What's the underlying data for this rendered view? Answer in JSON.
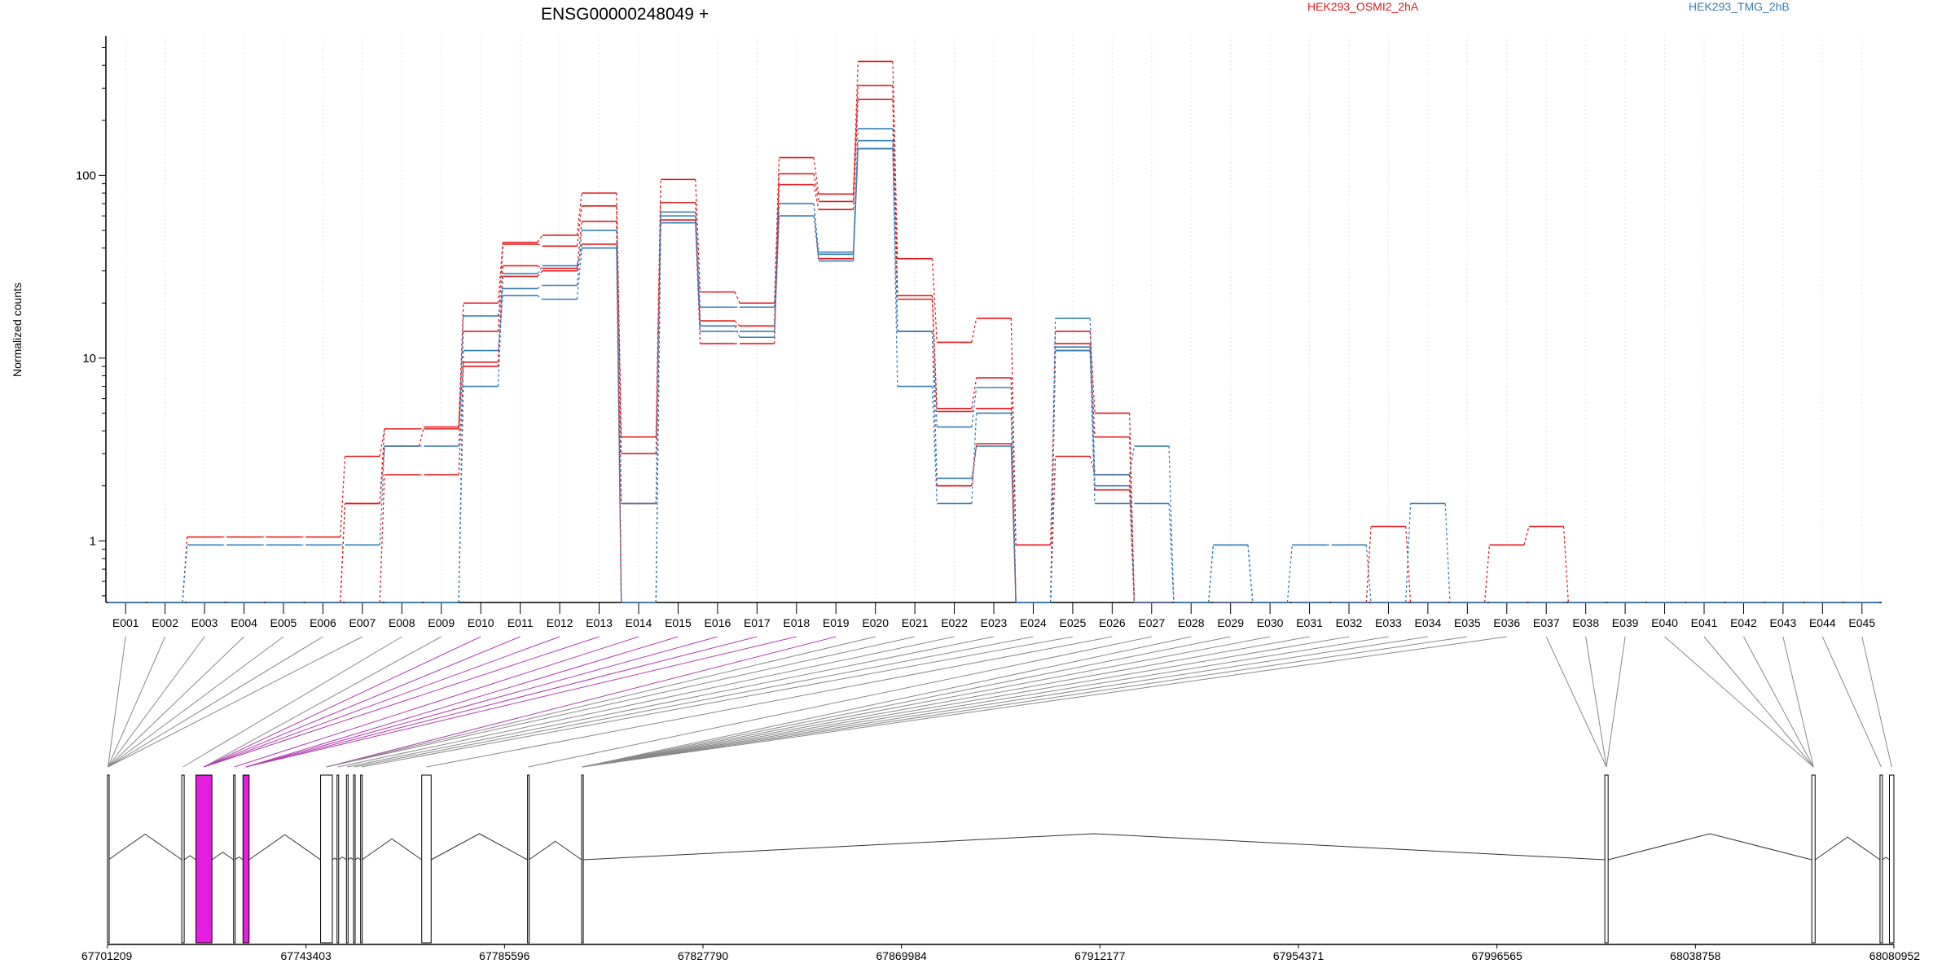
{
  "chart_data": {
    "type": "line",
    "title": "ENSG00000248049 +",
    "ylabel": "Normalized counts",
    "yscale": "log",
    "ylim": [
      0.46,
      580
    ],
    "yticks": [
      {
        "label": "1",
        "value": 1
      },
      {
        "label": "10",
        "value": 10
      },
      {
        "label": "100",
        "value": 100
      }
    ],
    "floor_value": 0.46,
    "categories": [
      "E001",
      "E002",
      "E003",
      "E004",
      "E005",
      "E006",
      "E007",
      "E008",
      "E009",
      "E010",
      "E011",
      "E012",
      "E013",
      "E014",
      "E015",
      "E016",
      "E017",
      "E018",
      "E019",
      "E020",
      "E021",
      "E022",
      "E023",
      "E024",
      "E025",
      "E026",
      "E027",
      "E028",
      "E029",
      "E030",
      "E031",
      "E032",
      "E033",
      "E034",
      "E035",
      "E036",
      "E037",
      "E038",
      "E039",
      "E040",
      "E041",
      "E042",
      "E043",
      "E044",
      "E045"
    ],
    "groups": [
      {
        "name": "HEK293_OSMI2_2hA",
        "color": "#e41a1c"
      },
      {
        "name": "HEK293_TMG_2hB",
        "color": "#377eb8"
      }
    ],
    "series": [
      {
        "group": 0,
        "values": [
          0.46,
          0.46,
          1.05,
          1.05,
          1.05,
          1.05,
          2.9,
          4.1,
          4.1,
          20,
          43,
          47,
          80,
          3.7,
          95,
          23,
          20,
          125,
          79,
          420,
          35,
          12.2,
          16.5,
          0.95,
          14,
          5,
          0.46,
          0.46,
          0.46,
          0.46,
          0.46,
          0.46,
          1.2,
          0.46,
          0.46,
          0.95,
          1.2,
          0.46,
          0.46,
          0.46,
          0.46,
          0.46,
          0.46,
          0.46,
          0.46
        ]
      },
      {
        "group": 0,
        "values": [
          0.46,
          0.46,
          0.46,
          0.46,
          0.46,
          0.46,
          1.6,
          3.3,
          4.2,
          14,
          42,
          41,
          68,
          3.0,
          71,
          16,
          15,
          102,
          72,
          310,
          22,
          5.3,
          7.8,
          0.46,
          12,
          3.7,
          0.46,
          0.46,
          0.46,
          0.46,
          0.46,
          0.46,
          0.46,
          0.46,
          0.46,
          0.46,
          0.46,
          0.46,
          0.46,
          0.46,
          0.46,
          0.46,
          0.46,
          0.46,
          0.46
        ]
      },
      {
        "group": 0,
        "values": [
          0.46,
          0.46,
          0.46,
          0.46,
          0.46,
          0.46,
          0.46,
          2.3,
          2.3,
          9,
          32,
          31,
          56,
          0.46,
          57,
          12,
          12,
          89,
          65,
          260,
          21,
          5.1,
          5.3,
          0.46,
          2.9,
          2.3,
          0.46,
          0.46,
          0.46,
          0.46,
          0.46,
          0.46,
          0.46,
          0.46,
          0.46,
          0.46,
          0.46,
          0.46,
          0.46,
          0.46,
          0.46,
          0.46,
          0.46,
          0.46,
          0.46
        ]
      },
      {
        "group": 0,
        "values": [
          0.46,
          0.46,
          0.46,
          0.46,
          0.46,
          0.46,
          1.6,
          4.1,
          4.1,
          9.5,
          28,
          30,
          42,
          1.6,
          57,
          15,
          15,
          60,
          35,
          140,
          14,
          2.0,
          3.4,
          0.46,
          11,
          1.9,
          0.46,
          0.46,
          0.46,
          0.46,
          0.46,
          0.46,
          0.46,
          0.46,
          0.46,
          0.46,
          0.46,
          0.46,
          0.46,
          0.46,
          0.46,
          0.46,
          0.46,
          0.46,
          0.46
        ]
      },
      {
        "group": 1,
        "values": [
          0.46,
          0.46,
          0.95,
          0.95,
          0.95,
          0.95,
          0.95,
          3.3,
          3.3,
          17,
          24,
          25,
          50,
          1.6,
          63,
          19,
          19,
          70,
          38,
          180,
          14,
          4.2,
          6.9,
          0.46,
          16.5,
          2.3,
          3.3,
          0.46,
          0.95,
          0.46,
          0.95,
          0.95,
          0.46,
          1.6,
          0.46,
          0.46,
          0.46,
          0.46,
          0.46,
          0.46,
          0.46,
          0.46,
          0.46,
          0.46,
          0.46
        ]
      },
      {
        "group": 1,
        "values": [
          0.46,
          0.46,
          0.46,
          0.46,
          0.46,
          0.46,
          0.46,
          0.46,
          0.46,
          11,
          22,
          21,
          40,
          0.46,
          60,
          15,
          13,
          60,
          37,
          155,
          7,
          1.6,
          5.0,
          0.46,
          11.5,
          1.6,
          1.6,
          0.46,
          0.95,
          0.46,
          0.46,
          0.46,
          0.46,
          0.46,
          0.46,
          0.46,
          0.46,
          0.46,
          0.46,
          0.46,
          0.46,
          0.46,
          0.46,
          0.46,
          0.46
        ]
      },
      {
        "group": 1,
        "values": [
          0.46,
          0.46,
          0.46,
          0.46,
          0.46,
          0.46,
          0.46,
          0.46,
          0.46,
          7,
          29,
          32,
          40,
          0.46,
          55,
          14,
          14,
          70,
          34,
          140,
          14,
          2.2,
          3.3,
          0.46,
          11,
          2.0,
          0.46,
          0.46,
          0.46,
          0.46,
          0.46,
          0.46,
          0.46,
          0.46,
          0.46,
          0.46,
          0.46,
          0.46,
          0.46,
          0.46,
          0.46,
          0.46,
          0.46,
          0.46,
          0.46
        ]
      }
    ],
    "gene_model": {
      "coord_ticks": [
        "67701209",
        "67743403",
        "67785596",
        "67827790",
        "67869984",
        "67912177",
        "67954371",
        "67996565",
        "68038758",
        "68080952"
      ],
      "range": [
        67701209,
        68080952
      ],
      "exons": [
        {
          "start": 67701209,
          "end": 67701400,
          "highlight": false
        },
        {
          "start": 67717000,
          "end": 67717500,
          "highlight": false
        },
        {
          "start": 67720000,
          "end": 67723400,
          "highlight": true
        },
        {
          "start": 67728000,
          "end": 67728300,
          "highlight": false
        },
        {
          "start": 67730000,
          "end": 67731300,
          "highlight": true
        },
        {
          "start": 67746500,
          "end": 67749000,
          "highlight": false
        },
        {
          "start": 67750000,
          "end": 67750300,
          "highlight": false
        },
        {
          "start": 67752000,
          "end": 67752300,
          "highlight": false
        },
        {
          "start": 67753500,
          "end": 67753800,
          "highlight": false
        },
        {
          "start": 67755000,
          "end": 67755300,
          "highlight": false
        },
        {
          "start": 67768000,
          "end": 67770000,
          "highlight": false
        },
        {
          "start": 67790500,
          "end": 67790800,
          "highlight": false
        },
        {
          "start": 67802000,
          "end": 67802300,
          "highlight": false
        },
        {
          "start": 68019500,
          "end": 68020200,
          "highlight": false
        },
        {
          "start": 68063500,
          "end": 68064200,
          "highlight": false
        },
        {
          "start": 68078000,
          "end": 68078500,
          "highlight": false
        },
        {
          "start": 68080000,
          "end": 68080952,
          "highlight": false
        }
      ],
      "exon_map": [
        0,
        0,
        0,
        0,
        0,
        0,
        0,
        1,
        2,
        2,
        2,
        2,
        2,
        3,
        4,
        4,
        4,
        4,
        5,
        5,
        5,
        6,
        7,
        8,
        9,
        10,
        11,
        12,
        12,
        12,
        12,
        12,
        12,
        12,
        12,
        12,
        13,
        13,
        13,
        14,
        14,
        14,
        14,
        15,
        16
      ],
      "highlight_bins": [
        9,
        10,
        11,
        12,
        13,
        14,
        15,
        16,
        17,
        18
      ]
    }
  }
}
